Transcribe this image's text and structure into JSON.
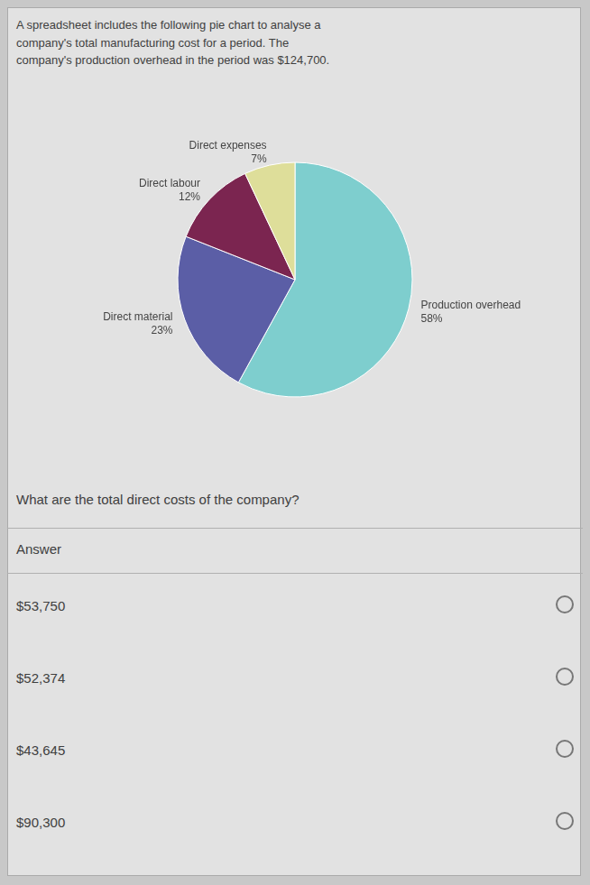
{
  "chart_data": {
    "type": "pie",
    "title": "A spreadsheet includes the following pie chart to analyse a\ncompany's total manufacturing cost for a period. The\ncompany's production overhead in the period was $124,700.",
    "categories": [
      "Production overhead",
      "Direct material",
      "Direct labour",
      "Direct expenses"
    ],
    "values": [
      58,
      23,
      12,
      7
    ],
    "value_labels": [
      "58%",
      "23%",
      "12%",
      "7%"
    ],
    "colors": [
      "#7ECECE",
      "#5B5EA6",
      "#7B2550",
      "#DEDE9A"
    ],
    "data_labels": true,
    "annotations": [
      "What are the total direct costs of the company?",
      "Answer",
      "$53,750",
      "$52,374",
      "$43,645",
      "$90,300"
    ]
  }
}
